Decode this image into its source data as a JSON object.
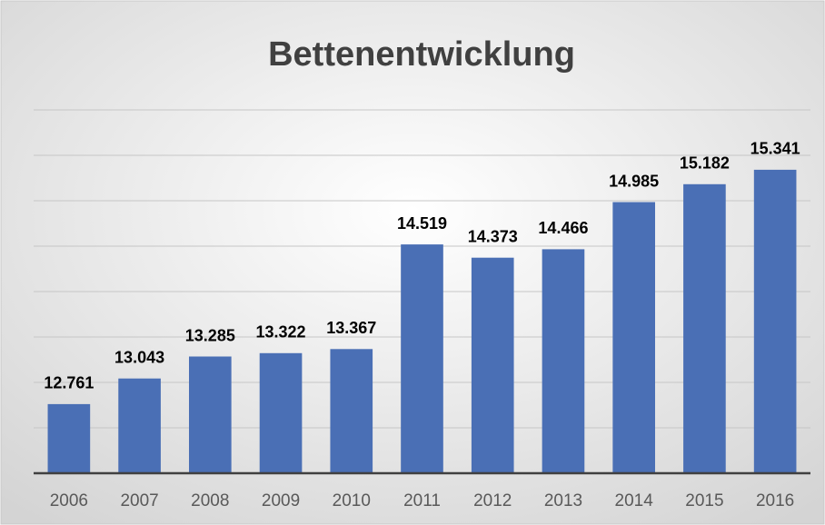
{
  "chart_data": {
    "type": "bar",
    "title": "Bettenentwicklung",
    "categories": [
      "2006",
      "2007",
      "2008",
      "2009",
      "2010",
      "2011",
      "2012",
      "2013",
      "2014",
      "2015",
      "2016"
    ],
    "values": [
      12761,
      13043,
      13285,
      13322,
      13367,
      14519,
      14373,
      14466,
      14985,
      15182,
      15341
    ],
    "value_labels": [
      "12.761",
      "13.043",
      "13.285",
      "13.322",
      "13.367",
      "14.519",
      "14.373",
      "14.466",
      "14.985",
      "15.182",
      "15.341"
    ],
    "color": "#4a6fb5",
    "ylim": [
      12000,
      16000
    ],
    "yticks": [
      12000,
      12500,
      13000,
      13500,
      14000,
      14500,
      15000,
      15500,
      16000
    ],
    "grid": true
  }
}
